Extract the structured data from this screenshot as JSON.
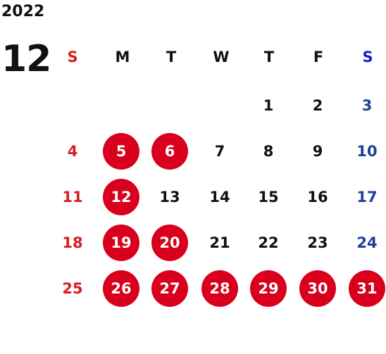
{
  "year": "2022",
  "month": "12",
  "weekdays": [
    "S",
    "M",
    "T",
    "W",
    "T",
    "F",
    "S"
  ],
  "colors": {
    "sunday": "#d71f1f",
    "saturday": "#1f3f9a",
    "holiday_circle": "#d8001c"
  },
  "weeks": [
    [
      "",
      "",
      "",
      "",
      "1",
      "2",
      "3"
    ],
    [
      "4",
      "5",
      "6",
      "7",
      "8",
      "9",
      "10"
    ],
    [
      "11",
      "12",
      "13",
      "14",
      "15",
      "16",
      "17"
    ],
    [
      "18",
      "19",
      "20",
      "21",
      "22",
      "23",
      "24"
    ],
    [
      "25",
      "26",
      "27",
      "28",
      "29",
      "30",
      "31"
    ]
  ],
  "highlighted_days": [
    "5",
    "6",
    "12",
    "19",
    "20",
    "26",
    "27",
    "28",
    "29",
    "30",
    "31"
  ]
}
